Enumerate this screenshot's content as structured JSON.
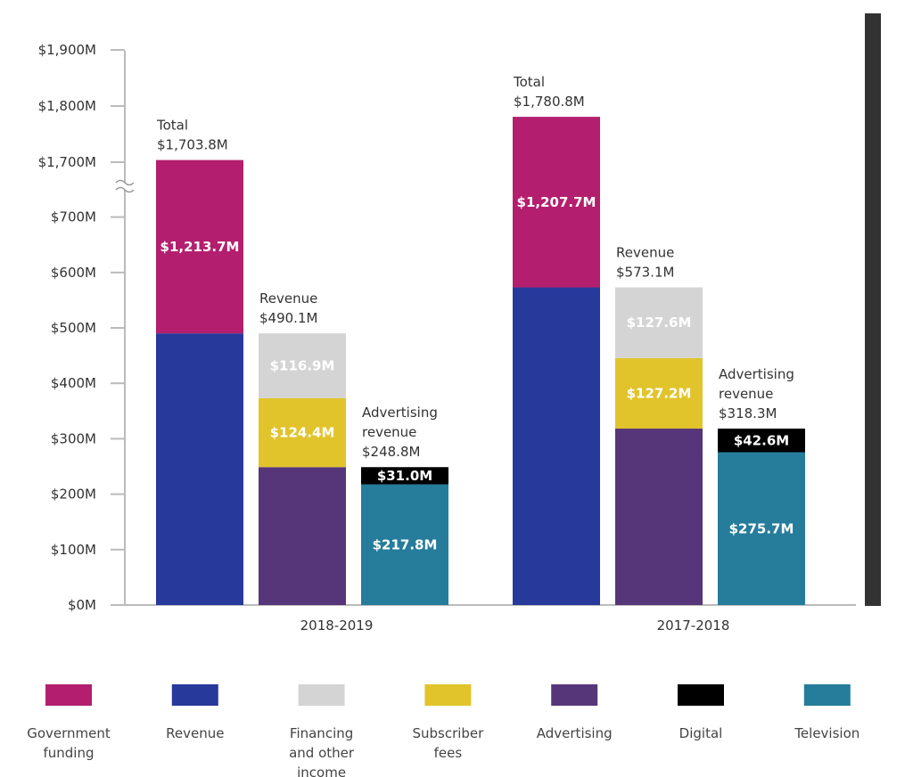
{
  "chart_data": {
    "type": "bar",
    "stacked": true,
    "axis_break": [
      700,
      1700
    ],
    "ylim": [
      0,
      1900
    ],
    "y_ticks": [
      "$0M",
      "$100M",
      "$200M",
      "$300M",
      "$400M",
      "$500M",
      "$600M",
      "$700M",
      "$1,700M",
      "$1,800M",
      "$1,900M"
    ],
    "y_tick_values": [
      0,
      100,
      200,
      300,
      400,
      500,
      600,
      700,
      1700,
      1800,
      1900
    ],
    "grid": false,
    "legend_position": "bottom",
    "groups": [
      {
        "category": "2018-2019",
        "bars": [
          {
            "annotation": [
              "Total",
              "$1,703.8M"
            ],
            "segments": [
              {
                "series": "Revenue",
                "value": 490.1,
                "label": ""
              },
              {
                "series": "Government funding",
                "value": 1213.7,
                "label": "$1,213.7M"
              }
            ]
          },
          {
            "annotation": [
              "Revenue",
              "$490.1M"
            ],
            "segments": [
              {
                "series": "Advertising",
                "value": 248.8,
                "label": ""
              },
              {
                "series": "Subscriber fees",
                "value": 124.4,
                "label": "$124.4M"
              },
              {
                "series": "Financing and other income",
                "value": 116.9,
                "label": "$116.9M"
              }
            ]
          },
          {
            "annotation": [
              "Advertising",
              "revenue",
              "$248.8M"
            ],
            "segments": [
              {
                "series": "Television",
                "value": 217.8,
                "label": "$217.8M"
              },
              {
                "series": "Digital",
                "value": 31.0,
                "label": "$31.0M"
              }
            ]
          }
        ]
      },
      {
        "category": "2017-2018",
        "bars": [
          {
            "annotation": [
              "Total",
              "$1,780.8M"
            ],
            "segments": [
              {
                "series": "Revenue",
                "value": 573.1,
                "label": ""
              },
              {
                "series": "Government funding",
                "value": 1207.7,
                "label": "$1,207.7M"
              }
            ]
          },
          {
            "annotation": [
              "Revenue",
              "$573.1M"
            ],
            "segments": [
              {
                "series": "Advertising",
                "value": 318.3,
                "label": ""
              },
              {
                "series": "Subscriber fees",
                "value": 127.2,
                "label": "$127.2M"
              },
              {
                "series": "Financing and other income",
                "value": 127.6,
                "label": "$127.6M"
              }
            ]
          },
          {
            "annotation": [
              "Advertising",
              "revenue",
              "$318.3M"
            ],
            "segments": [
              {
                "series": "Television",
                "value": 275.7,
                "label": "$275.7M"
              },
              {
                "series": "Digital",
                "value": 42.6,
                "label": "$42.6M"
              }
            ]
          }
        ]
      }
    ],
    "legend": [
      {
        "name": "Government funding",
        "lines": [
          "Government",
          "funding"
        ],
        "color": "#b31f6e"
      },
      {
        "name": "Revenue",
        "lines": [
          "Revenue"
        ],
        "color": "#27399b"
      },
      {
        "name": "Financing and other income",
        "lines": [
          "Financing",
          "and other",
          "income"
        ],
        "color": "#d4d4d4"
      },
      {
        "name": "Subscriber fees",
        "lines": [
          "Subscriber",
          "fees"
        ],
        "color": "#e1c42b"
      },
      {
        "name": "Advertising",
        "lines": [
          "Advertising"
        ],
        "color": "#563679"
      },
      {
        "name": "Digital",
        "lines": [
          "Digital"
        ],
        "color": "#000000"
      },
      {
        "name": "Television",
        "lines": [
          "Television"
        ],
        "color": "#267c9b"
      }
    ]
  }
}
